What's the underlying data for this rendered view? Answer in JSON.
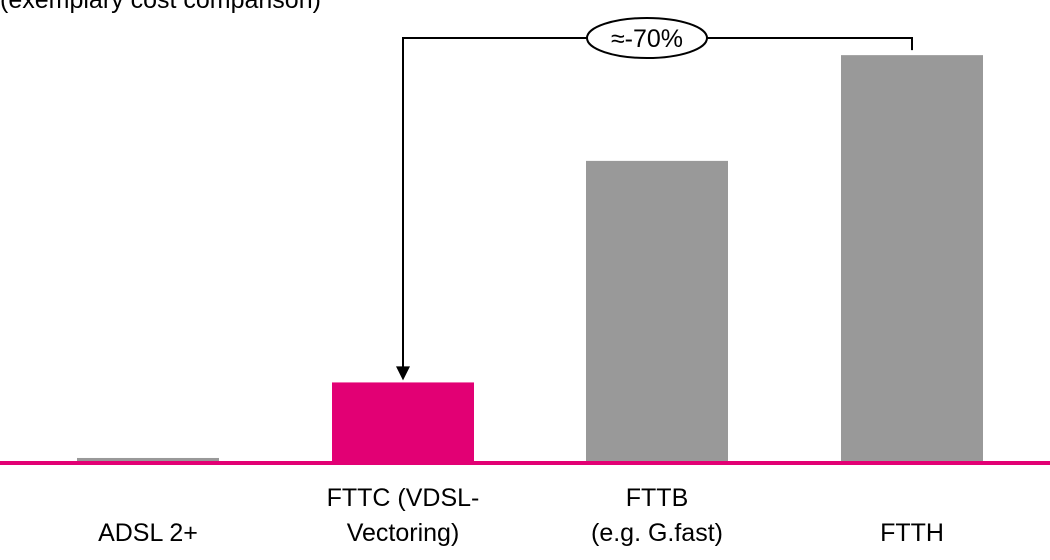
{
  "chart_data": {
    "type": "bar",
    "subtitle_fragment": "(exemplary cost comparison)",
    "categories": [
      "ADSL 2+",
      "FTTC (VDSL-\nVectoring)",
      "FTTB\n(e.g. G.fast)",
      "FTTH"
    ],
    "values": [
      1,
      16,
      60,
      81
    ],
    "ylim": [
      0,
      85
    ],
    "grid": false,
    "colors": {
      "default_bar": "#999999",
      "highlight_bar": "#e20074",
      "baseline": "#e20074"
    },
    "highlight_index": 1,
    "annotation": {
      "label": "≈-70%",
      "from_index": 3,
      "to_index": 1
    }
  }
}
